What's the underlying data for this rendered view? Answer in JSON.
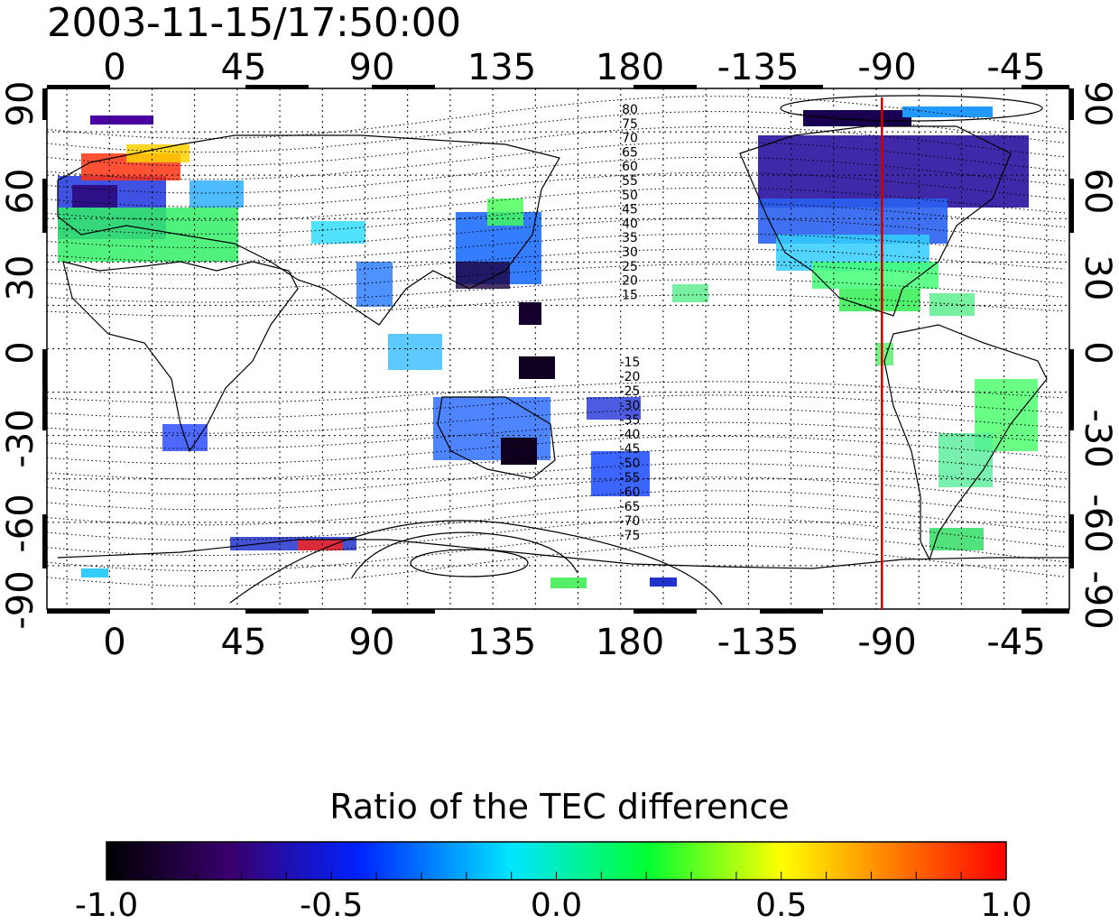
{
  "timestamp": "2003-11-15/17:50:00",
  "map": {
    "longitude_ticks": [
      "0",
      "45",
      "90",
      "135",
      "180",
      "-135",
      "-90",
      "-45"
    ],
    "latitude_ticks": [
      "90",
      "60",
      "30",
      "0",
      "-30",
      "-60",
      "-90"
    ],
    "contour_labels_north": [
      "80",
      "75",
      "70",
      "65",
      "60",
      "55",
      "50",
      "45",
      "40",
      "35",
      "30",
      "25",
      "20",
      "15"
    ],
    "contour_labels_south": [
      "-15",
      "-20",
      "-25",
      "-30",
      "-35",
      "-40",
      "-45",
      "-50",
      "-55",
      "-60",
      "-65",
      "-70",
      "-75"
    ],
    "marker_longitude": -88,
    "marker_color": "#cc0000"
  },
  "colorbar": {
    "title": "Ratio of the TEC difference",
    "range": [
      -1.0,
      1.0
    ],
    "labels": [
      "-1.0",
      "-0.5",
      "0.0",
      "0.5",
      "1.0"
    ],
    "colormap": [
      "#000000",
      "#3a0070",
      "#0022ff",
      "#00e5ff",
      "#00ff33",
      "#ffff00",
      "#ff7700",
      "#ff0000"
    ]
  }
}
